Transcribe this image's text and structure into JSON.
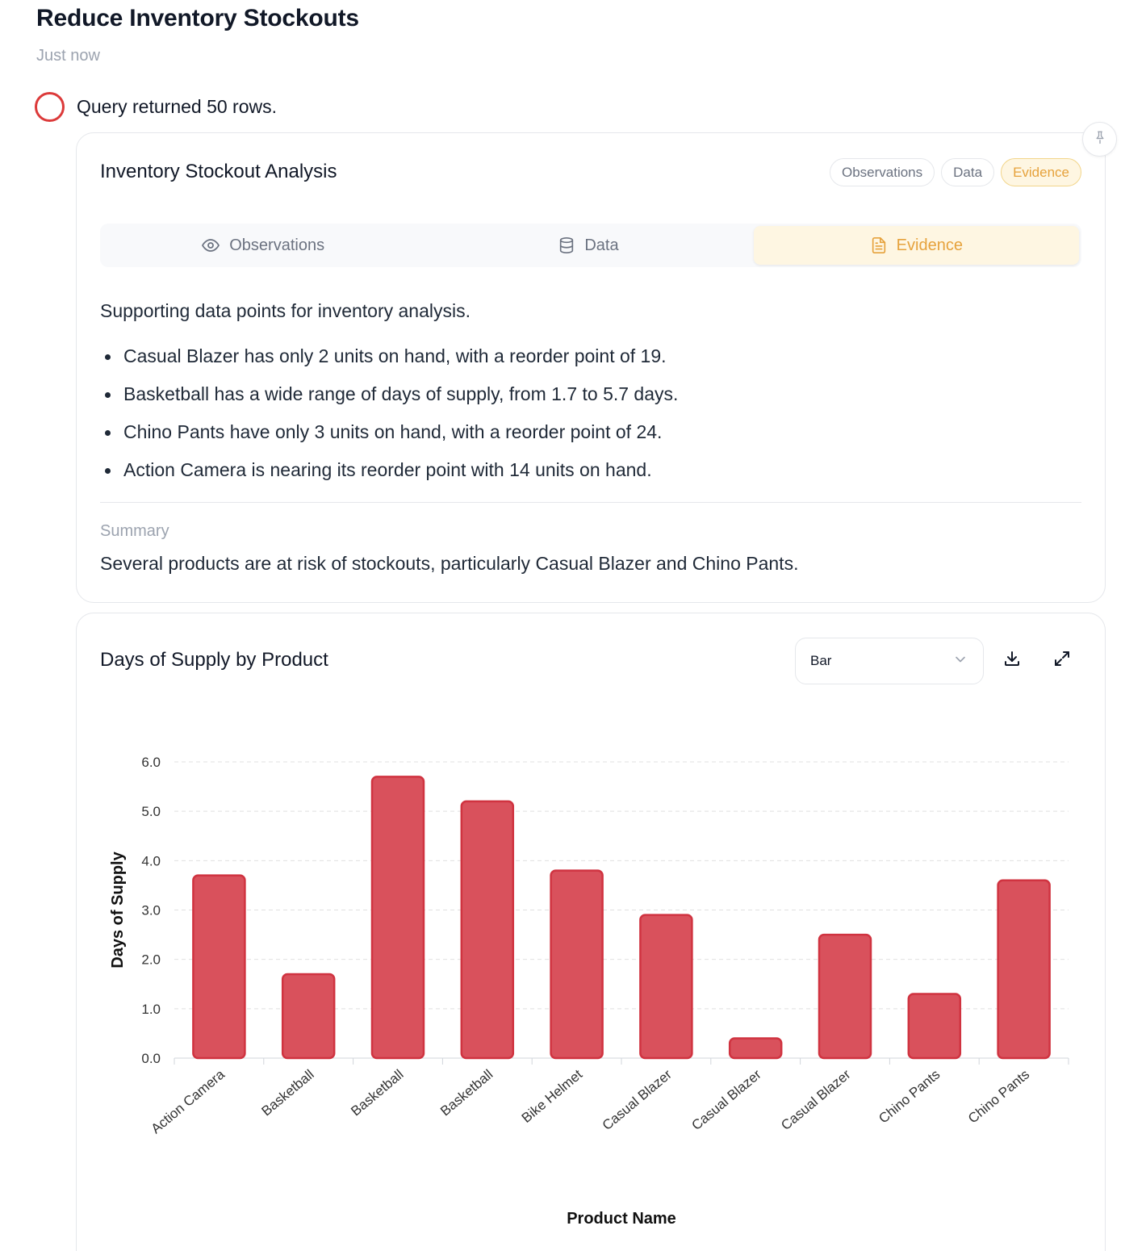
{
  "header": {
    "title": "Reduce Inventory Stockouts",
    "timestamp": "Just now"
  },
  "status": {
    "text": "Query returned 50 rows.",
    "color": "#dc3a3a"
  },
  "analysis": {
    "title": "Inventory Stockout Analysis",
    "pills": [
      "Observations",
      "Data",
      "Evidence"
    ],
    "active_pill": "Evidence",
    "tabs": [
      {
        "label": "Observations",
        "icon": "eye-icon"
      },
      {
        "label": "Data",
        "icon": "database-icon"
      },
      {
        "label": "Evidence",
        "icon": "document-icon"
      }
    ],
    "active_tab": "Evidence",
    "intro": "Supporting data points for inventory analysis.",
    "bullets": [
      "Casual Blazer has only 2 units on hand, with a reorder point of 19.",
      "Basketball has a wide range of days of supply, from 1.7 to 5.7 days.",
      "Chino Pants have only 3 units on hand, with a reorder point of 24.",
      "Action Camera is nearing its reorder point with 14 units on hand."
    ],
    "summary_label": "Summary",
    "summary_text": "Several products are at risk of stockouts, particularly Casual Blazer and Chino Pants."
  },
  "chart_card": {
    "title": "Days of Supply by Product",
    "chart_type_value": "Bar",
    "download_icon": "download-icon",
    "expand_icon": "expand-icon",
    "pin_icon": "pin-icon"
  },
  "chart_data": {
    "type": "bar",
    "title": "Days of Supply by Product",
    "xlabel": "Product Name",
    "ylabel": "Days of Supply",
    "categories": [
      "Action Camera",
      "Basketball",
      "Basketball",
      "Basketball",
      "Bike Helmet",
      "Casual Blazer",
      "Casual Blazer",
      "Casual Blazer",
      "Chino Pants",
      "Chino Pants"
    ],
    "values": [
      3.7,
      1.7,
      5.7,
      5.2,
      3.8,
      2.9,
      0.4,
      2.5,
      1.3,
      3.6
    ],
    "ylim": [
      0,
      6
    ],
    "yticks": [
      "0.0",
      "1.0",
      "2.0",
      "3.0",
      "4.0",
      "5.0",
      "6.0"
    ],
    "grid": true,
    "bar_color": "#d9515c",
    "bar_edge_color": "#d03340",
    "legend": "none"
  },
  "colors": {
    "accent": "#e6a23c",
    "accent_bg": "#fef6e2"
  }
}
